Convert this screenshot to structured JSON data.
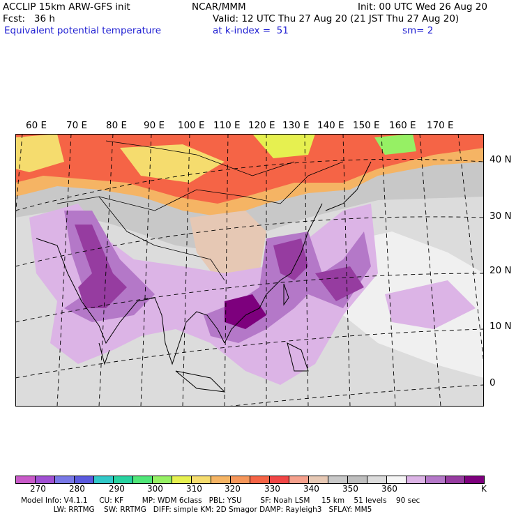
{
  "header": {
    "model": "ACCLIP 15km ARW-GFS init",
    "center": "NCAR/MMM",
    "init": "Init: 00 UTC Wed 26 Aug 20",
    "fcst": "Fcst:   36 h",
    "valid": "Valid: 12 UTC Thu 27 Aug 20 (21 JST Thu 27 Aug 20)",
    "field": "Equivalent potential temperature",
    "level": "at k-index =  51",
    "smooth": "sm= 2"
  },
  "map": {
    "lon_labels": [
      "60 E",
      "70 E",
      "80 E",
      "90 E",
      "100 E",
      "110 E",
      "120 E",
      "130 E",
      "140 E",
      "150 E",
      "160 E",
      "170 E"
    ],
    "lat_labels": [
      "40 N",
      "30 N",
      "20 N",
      "10 N",
      "0"
    ]
  },
  "colorbar": {
    "colors": [
      "#c85ac8",
      "#a050d2",
      "#7878e6",
      "#5a5ade",
      "#32c8c8",
      "#28d2a0",
      "#50e678",
      "#96f064",
      "#e6f050",
      "#f5dc6e",
      "#f5b464",
      "#f5965a",
      "#f56446",
      "#f04646",
      "#f5a08c",
      "#e6c8b4",
      "#c8c8c8",
      "#bebebe",
      "#dcdcdc",
      "#f5f5f5",
      "#dcb4e6",
      "#b478c8",
      "#963ca0",
      "#7d007d"
    ],
    "ticks": [
      "270",
      "280",
      "290",
      "300",
      "310",
      "320",
      "330",
      "340",
      "350",
      "360"
    ],
    "unit": "K"
  },
  "footer": {
    "line1": "Model Info: V4.1.1     CU: KF        MP: WDM 6class   PBL: YSU        SF: Noah LSM     15 km    51 levels    90 sec",
    "line2": "              LW: RRTMG    SW: RRTMG   DIFF: simple KM: 2D Smagor DAMP: Rayleigh3   SFLAY: MM5"
  }
}
